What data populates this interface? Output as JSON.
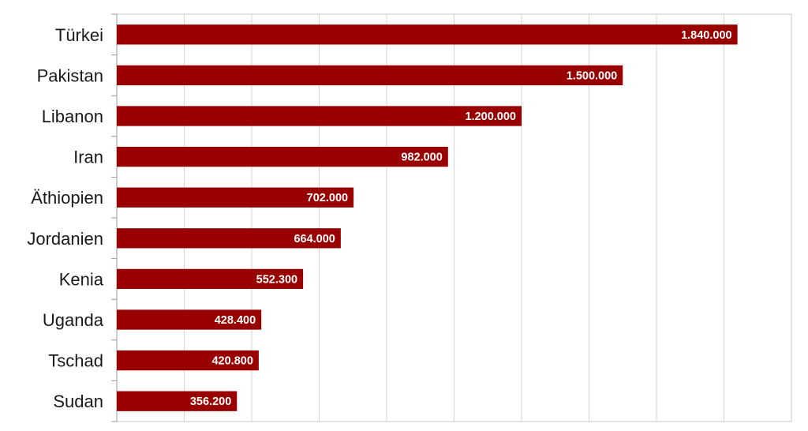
{
  "chart_data": {
    "type": "bar",
    "orientation": "horizontal",
    "title": "",
    "xlabel": "",
    "ylabel": "",
    "categories": [
      "Türkei",
      "Pakistan",
      "Libanon",
      "Iran",
      "Äthiopien",
      "Jordanien",
      "Kenia",
      "Uganda",
      "Tschad",
      "Sudan"
    ],
    "values": [
      1840000,
      1500000,
      1200000,
      982000,
      702000,
      664000,
      552300,
      428400,
      420800,
      356200
    ],
    "value_labels": [
      "1.840.000",
      "1.500.000",
      "1.200.000",
      "982.000",
      "702.000",
      "664.000",
      "552.300",
      "428.400",
      "420.800",
      "356.200"
    ],
    "xlim": [
      0,
      2000000
    ],
    "grid": true,
    "legend": "none",
    "bar_color": "#990000"
  }
}
